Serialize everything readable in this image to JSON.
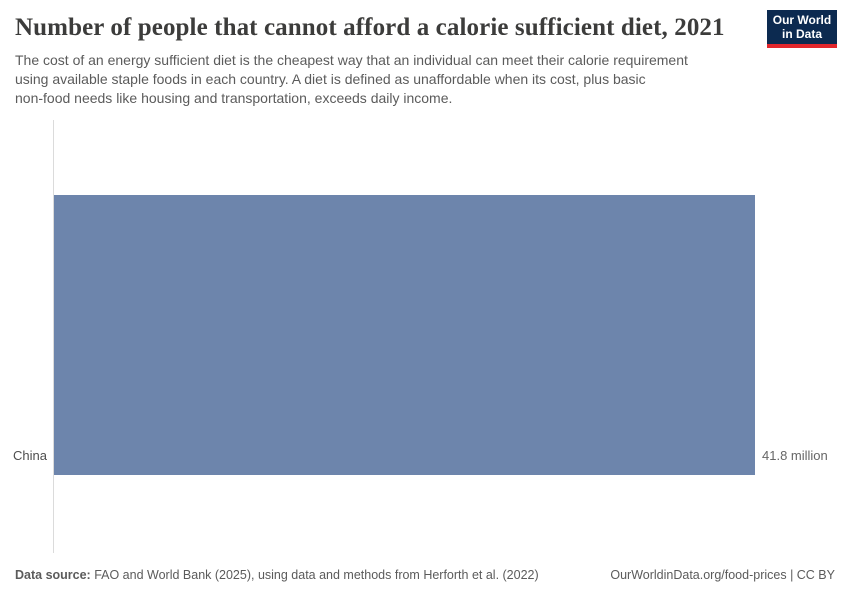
{
  "header": {
    "title": "Number of people that cannot afford a calorie sufficient diet, 2021",
    "subtitle_lines": {
      "0": "The cost of an energy sufficient diet is the cheapest way that an individual can meet their calorie requirement",
      "1": "using available staple foods in each country. A diet is defined as unaffordable when its cost, plus basic",
      "2": "non-food needs like housing and transportation, exceeds daily income."
    },
    "logo": {
      "line1": "Our World",
      "line2": "in Data"
    }
  },
  "chart_data": {
    "type": "bar",
    "orientation": "horizontal",
    "title": "Number of people that cannot afford a calorie sufficient diet, 2021",
    "categories": [
      "China"
    ],
    "values": [
      41.8
    ],
    "unit": "million",
    "value_labels": [
      "41.8 million"
    ],
    "xlim": [
      0,
      41.8
    ],
    "grid": false,
    "legend": "none",
    "bar_color": "#6d85ac",
    "axis_line_color": "#dbdbdb"
  },
  "footer": {
    "datasource_label": "Data source:",
    "datasource_text": " FAO and World Bank (2025), using data and methods from Herforth et al. (2022)",
    "link_text": "OurWorldinData.org/food-prices | CC BY"
  },
  "colors": {
    "title_text": "#3c3c3b",
    "subtitle_text": "#5b5b5b",
    "logo_background": "#0c2a50",
    "logo_stripe": "#e2262c",
    "bar": "#6d85ac"
  }
}
